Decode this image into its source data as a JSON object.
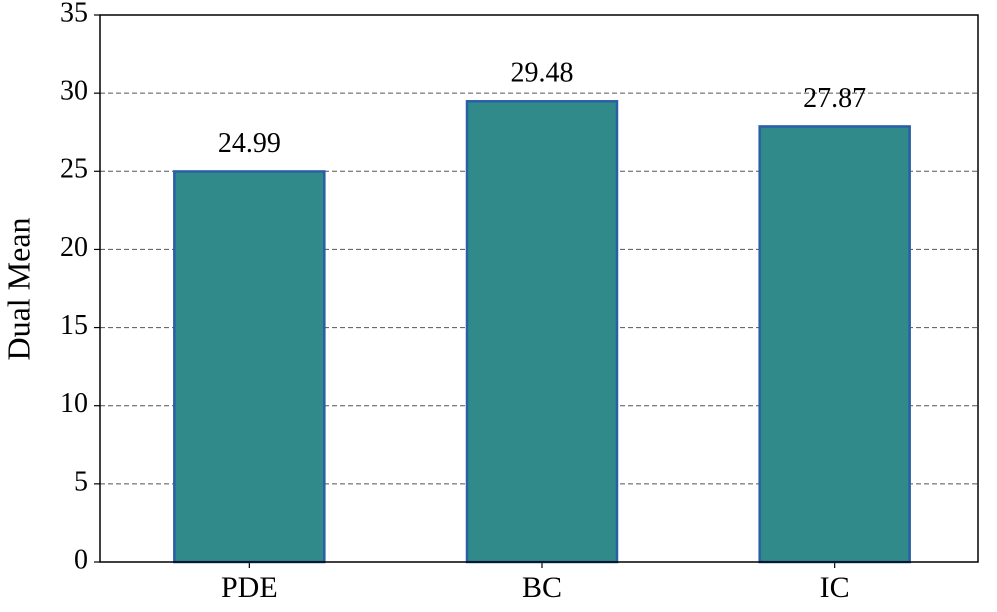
{
  "chart_data": {
    "type": "bar",
    "y_label": "Dual Mean",
    "categories": [
      "PDE",
      "BC",
      "IC"
    ],
    "values": [
      24.99,
      29.48,
      27.87
    ],
    "color": "#2f8a89",
    "edge_color": "#2a5fa8",
    "ylim": [
      0,
      35
    ],
    "yticks": [
      0,
      5,
      10,
      15,
      20,
      25,
      30,
      35
    ],
    "grid": true,
    "show_value_labels": true
  }
}
